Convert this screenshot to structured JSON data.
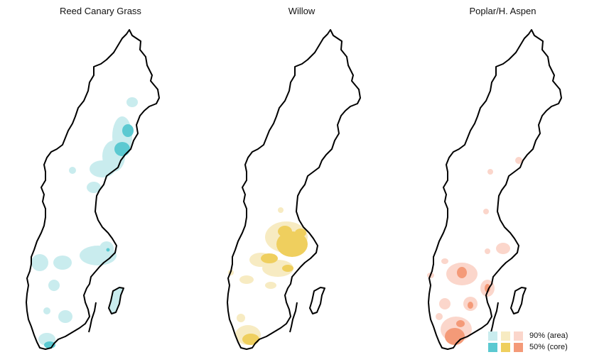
{
  "panels": [
    {
      "title": "Reed Canary Grass",
      "color_area": "#c9ecee",
      "color_core": "#5bc9d1"
    },
    {
      "title": "Willow",
      "color_area": "#f7ebc2",
      "color_core": "#efcf5e"
    },
    {
      "title": "Poplar/H. Aspen",
      "color_area": "#fbd6cb",
      "color_core": "#f49a78"
    }
  ],
  "legend": {
    "area_label": "90% (area)",
    "core_label": "50% (core)"
  }
}
